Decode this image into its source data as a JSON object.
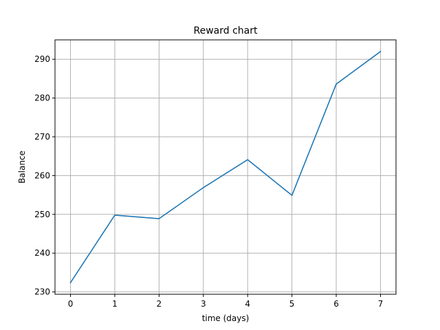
{
  "chart_data": {
    "type": "line",
    "title": "Reward chart",
    "xlabel": "time (days)",
    "ylabel": "Balance",
    "x": [
      0,
      1,
      2,
      3,
      4,
      5,
      6,
      7
    ],
    "series": [
      {
        "values": [
          232.4,
          249.8,
          248.9,
          256.9,
          264.1,
          254.9,
          283.6,
          292.0
        ],
        "color": "#1f77b4"
      }
    ],
    "xticks": [
      0,
      1,
      2,
      3,
      4,
      5,
      6,
      7
    ],
    "yticks": [
      230,
      240,
      250,
      260,
      270,
      280,
      290
    ],
    "xlim": [
      -0.35,
      7.35
    ],
    "ylim": [
      229.4,
      295.0
    ],
    "grid": true
  }
}
